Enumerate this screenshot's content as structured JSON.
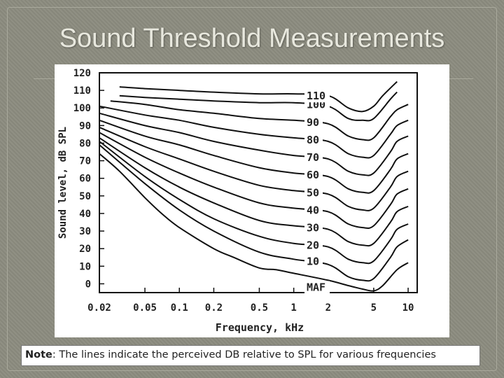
{
  "slide": {
    "title": "Sound Threshold Measurements",
    "note_label": "Note",
    "note_text": ": The lines indicate the perceived DB relative to SPL for various frequencies"
  },
  "chart_data": {
    "type": "line",
    "xlabel": "Frequency, kHz",
    "ylabel": "Sound level, dB SPL",
    "x_scale": "log",
    "xlim": [
      0.02,
      12
    ],
    "ylim": [
      -5,
      120
    ],
    "x_ticks": [
      {
        "value": 0.02,
        "label": "0.02"
      },
      {
        "value": 0.05,
        "label": "0.05"
      },
      {
        "value": 0.1,
        "label": "0.1"
      },
      {
        "value": 0.2,
        "label": "0.2"
      },
      {
        "value": 0.5,
        "label": "0.5"
      },
      {
        "value": 1,
        "label": "1"
      },
      {
        "value": 2,
        "label": "2"
      },
      {
        "value": 5,
        "label": "5"
      },
      {
        "value": 10,
        "label": "10"
      }
    ],
    "y_ticks": [
      {
        "value": 0,
        "label": "0"
      },
      {
        "value": 10,
        "label": "10"
      },
      {
        "value": 20,
        "label": "20"
      },
      {
        "value": 30,
        "label": "30"
      },
      {
        "value": 40,
        "label": "40"
      },
      {
        "value": 50,
        "label": "50"
      },
      {
        "value": 60,
        "label": "60"
      },
      {
        "value": 70,
        "label": "70"
      },
      {
        "value": 80,
        "label": "80"
      },
      {
        "value": 90,
        "label": "90"
      },
      {
        "value": 100,
        "label": "100"
      },
      {
        "value": 110,
        "label": "110"
      },
      {
        "value": 120,
        "label": "120"
      }
    ],
    "grid": false,
    "series": [
      {
        "name": "MAF",
        "x": [
          0.02,
          0.03,
          0.05,
          0.07,
          0.1,
          0.2,
          0.3,
          0.5,
          0.7,
          1,
          2,
          3,
          4,
          5,
          6,
          8,
          10
        ],
        "y": [
          74,
          64,
          49,
          40,
          32,
          20,
          15,
          9,
          8,
          6,
          2,
          -1,
          -3,
          -4,
          -1,
          8,
          12
        ]
      },
      {
        "name": "10",
        "x": [
          0.02,
          0.05,
          0.1,
          0.2,
          0.5,
          1,
          2,
          3,
          4,
          5,
          7,
          8,
          10
        ],
        "y": [
          79,
          57,
          42,
          30,
          18,
          14,
          11,
          4,
          2,
          3,
          15,
          21,
          25
        ]
      },
      {
        "name": "20",
        "x": [
          0.02,
          0.05,
          0.1,
          0.2,
          0.5,
          1,
          2,
          3,
          4,
          5,
          7,
          8,
          10
        ],
        "y": [
          81,
          61,
          48,
          37,
          27,
          23,
          21,
          14,
          12,
          13,
          25,
          31,
          34
        ]
      },
      {
        "name": "30",
        "x": [
          0.02,
          0.05,
          0.1,
          0.2,
          0.5,
          1,
          2,
          3,
          4,
          5,
          7,
          8,
          10
        ],
        "y": [
          83,
          66,
          55,
          46,
          36,
          33,
          31,
          24,
          22,
          23,
          35,
          41,
          44
        ]
      },
      {
        "name": "40",
        "x": [
          0.02,
          0.05,
          0.1,
          0.2,
          0.5,
          1,
          2,
          3,
          4,
          5,
          7,
          8,
          10
        ],
        "y": [
          86,
          72,
          63,
          55,
          46,
          43,
          41,
          34,
          32,
          33,
          45,
          51,
          54
        ]
      },
      {
        "name": "50",
        "x": [
          0.02,
          0.05,
          0.1,
          0.2,
          0.5,
          1,
          2,
          3,
          4,
          5,
          7,
          8,
          10
        ],
        "y": [
          89,
          78,
          71,
          64,
          56,
          53,
          51,
          44,
          42,
          43,
          55,
          61,
          64
        ]
      },
      {
        "name": "60",
        "x": [
          0.02,
          0.05,
          0.1,
          0.2,
          0.5,
          1,
          2,
          3,
          4,
          5,
          7,
          8,
          10
        ],
        "y": [
          93,
          84,
          79,
          73,
          66,
          63,
          61,
          54,
          52,
          53,
          65,
          71,
          74
        ]
      },
      {
        "name": "70",
        "x": [
          0.02,
          0.05,
          0.1,
          0.2,
          0.5,
          1,
          2,
          3,
          4,
          5,
          7,
          8,
          10
        ],
        "y": [
          97,
          90,
          86,
          81,
          76,
          73,
          71,
          64,
          62,
          63,
          75,
          81,
          84
        ]
      },
      {
        "name": "80",
        "x": [
          0.02,
          0.05,
          0.1,
          0.2,
          0.5,
          1,
          2,
          3,
          4,
          5,
          7,
          8,
          10
        ],
        "y": [
          101,
          96,
          93,
          89,
          85,
          83,
          81,
          74,
          72,
          73,
          85,
          90,
          93
        ]
      },
      {
        "name": "90",
        "x": [
          0.025,
          0.05,
          0.1,
          0.2,
          0.5,
          1,
          2,
          3,
          4,
          5,
          7,
          8,
          10
        ],
        "y": [
          104,
          102,
          99,
          97,
          94,
          93,
          91,
          84,
          82,
          83,
          95,
          99,
          102
        ]
      },
      {
        "name": "100",
        "x": [
          0.03,
          0.05,
          0.1,
          0.2,
          0.5,
          1,
          2,
          3,
          4,
          5,
          7,
          8
        ],
        "y": [
          107,
          106,
          105,
          104,
          103,
          103,
          101,
          94,
          93,
          94,
          105,
          109
        ]
      },
      {
        "name": "110",
        "x": [
          0.03,
          0.05,
          0.1,
          0.2,
          0.5,
          1,
          2,
          3,
          4,
          5,
          6,
          8
        ],
        "y": [
          112,
          111,
          110,
          109,
          108,
          108,
          107,
          100,
          98,
          101,
          107,
          115
        ]
      }
    ]
  }
}
